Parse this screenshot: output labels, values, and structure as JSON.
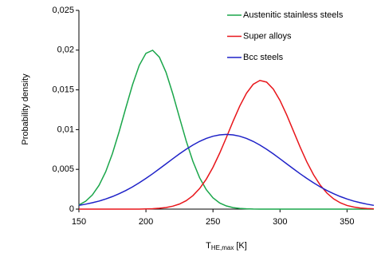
{
  "chart_data": {
    "type": "line",
    "ylabel": "Probability density",
    "xlabel": "T",
    "xlabel_sub": "HE,max",
    "xlabel_unit": "[K]",
    "x": [
      150,
      155,
      160,
      165,
      170,
      175,
      180,
      185,
      190,
      195,
      200,
      205,
      210,
      215,
      220,
      225,
      230,
      235,
      240,
      245,
      250,
      255,
      260,
      265,
      270,
      275,
      280,
      285,
      290,
      295,
      300,
      305,
      310,
      315,
      320,
      325,
      330,
      335,
      340,
      345,
      350,
      355,
      360,
      365,
      370
    ],
    "series": [
      {
        "name": "Austenitic stainless steels",
        "color": "#1aa64a",
        "values": [
          0.00052,
          0.00099,
          0.00178,
          0.00299,
          0.00471,
          0.00699,
          0.00974,
          0.01274,
          0.01565,
          0.01808,
          0.0196,
          0.01998,
          0.01912,
          0.0172,
          0.01452,
          0.01153,
          0.00859,
          0.00602,
          0.00396,
          0.00245,
          0.00142,
          0.00077,
          0.0004,
          0.00019,
          9e-05,
          4e-05,
          1e-05,
          0,
          0,
          0,
          0,
          0,
          0,
          0,
          0,
          0,
          0,
          0,
          0,
          0,
          0,
          0,
          0,
          0,
          0
        ]
      },
      {
        "name": "Super alloys",
        "color": "#e8161b",
        "values": [
          0,
          0,
          0,
          0,
          0,
          0,
          0,
          0,
          0,
          0,
          3e-05,
          5e-05,
          0.00011,
          0.0002,
          0.00037,
          0.00064,
          0.00106,
          0.00169,
          0.00258,
          0.00376,
          0.00526,
          0.00704,
          0.00901,
          0.01105,
          0.01297,
          0.01458,
          0.0157,
          0.01619,
          0.01598,
          0.0151,
          0.01367,
          0.01185,
          0.00983,
          0.00781,
          0.00594,
          0.00433,
          0.00302,
          0.00202,
          0.00129,
          0.00079,
          0.00046,
          0.00026,
          0.00014,
          7e-05,
          4e-05
        ]
      },
      {
        "name": "Bcc steels",
        "color": "#1f22c8",
        "values": [
          0.00047,
          0.00062,
          0.0008,
          0.00101,
          0.00127,
          0.00158,
          0.00194,
          0.00234,
          0.0028,
          0.00331,
          0.00386,
          0.00445,
          0.00507,
          0.0057,
          0.00633,
          0.00695,
          0.00753,
          0.00806,
          0.00852,
          0.00889,
          0.00917,
          0.00934,
          0.0094,
          0.00934,
          0.00917,
          0.00889,
          0.00852,
          0.00806,
          0.00753,
          0.00695,
          0.00633,
          0.0057,
          0.00507,
          0.00445,
          0.00386,
          0.00331,
          0.0028,
          0.00234,
          0.00194,
          0.00158,
          0.00127,
          0.00101,
          0.0008,
          0.00062,
          0.00047
        ]
      }
    ],
    "xlim": [
      150,
      370
    ],
    "xticks": [
      150,
      200,
      250,
      300,
      350
    ],
    "ylim": [
      0,
      0.025
    ],
    "yticks": [
      0,
      {
        "value": 0.005,
        "label": "0,005"
      },
      {
        "value": 0.01,
        "label": "0,01"
      },
      {
        "value": 0.015,
        "label": "0,015"
      },
      {
        "value": 0.02,
        "label": "0,02"
      },
      {
        "value": 0.025,
        "label": "0,025"
      }
    ],
    "grid": false,
    "legend": "upper right"
  }
}
